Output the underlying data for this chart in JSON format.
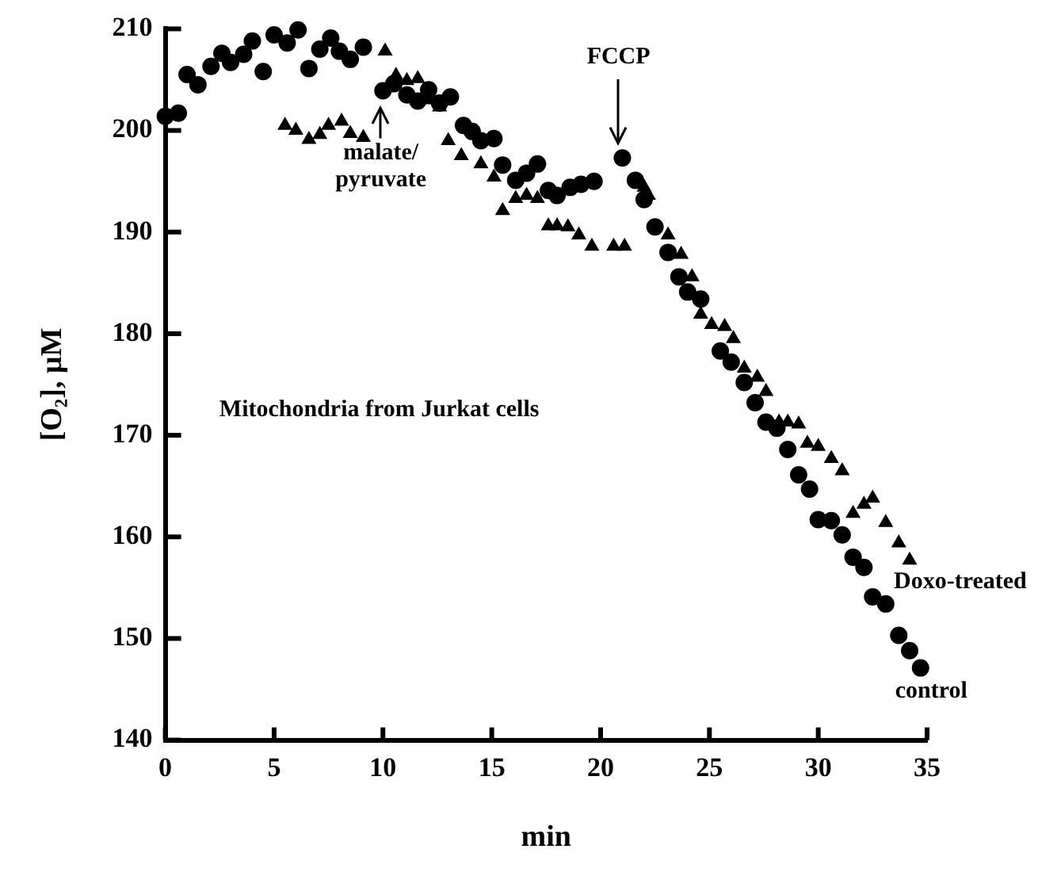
{
  "chart_data": {
    "type": "scatter",
    "xlabel": "min",
    "ylabel": "[O₂], μM",
    "xlim": [
      0,
      35
    ],
    "ylim": [
      140,
      210
    ],
    "xticks": [
      0,
      5,
      10,
      15,
      20,
      25,
      30,
      35
    ],
    "yticks": [
      140,
      150,
      160,
      170,
      180,
      190,
      200,
      210
    ],
    "grid": false,
    "legend": false,
    "annotations": [
      "Mitochondria from Jurkat cells",
      "malate/\npyruvate",
      "FCCP"
    ],
    "series": [
      {
        "name": "control",
        "color": "#000000",
        "marker": "circle",
        "x": [
          0,
          0.6,
          1.0,
          1.5,
          2.1,
          2.6,
          3.0,
          3.6,
          4.0,
          4.5,
          5.0,
          5.6,
          6.1,
          6.6,
          7.1,
          7.6,
          8.0,
          8.5,
          9.1,
          10.0,
          10.5,
          11.1,
          11.6,
          12.1,
          12.6,
          13.1,
          13.7,
          14.1,
          14.5,
          15.1,
          15.5,
          16.1,
          16.6,
          17.1,
          17.6,
          18.0,
          18.6,
          19.1,
          19.7,
          21.0,
          21.6,
          22.0,
          22.5,
          23.1,
          23.6,
          24.0,
          24.6,
          25.5,
          26.0,
          26.6,
          27.1,
          27.6,
          28.1,
          28.6,
          29.1,
          29.6,
          30.0,
          30.6,
          31.1,
          31.6,
          32.1,
          32.5,
          33.1,
          33.7,
          34.2,
          34.7
        ],
        "values": [
          201.4,
          201.7,
          205.5,
          204.5,
          206.3,
          207.6,
          206.7,
          207.5,
          208.8,
          205.8,
          209.4,
          208.6,
          209.9,
          206.1,
          208.0,
          209.1,
          207.8,
          207.0,
          208.2,
          203.9,
          204.6,
          203.5,
          202.9,
          204.0,
          202.7,
          203.3,
          200.5,
          199.9,
          199.0,
          199.2,
          196.6,
          195.1,
          195.8,
          196.7,
          194.1,
          193.6,
          194.4,
          194.7,
          195.0,
          197.3,
          195.1,
          193.2,
          190.5,
          188.0,
          185.6,
          184.1,
          183.4,
          178.3,
          177.2,
          175.2,
          173.2,
          171.3,
          170.7,
          168.6,
          166.1,
          164.7,
          161.7,
          161.6,
          160.2,
          158.0,
          157.0,
          154.1,
          153.4,
          150.3,
          148.8,
          147.1
        ]
      },
      {
        "name": "Doxo-treated",
        "color": "#000000",
        "marker": "triangle",
        "x": [
          5.5,
          6.0,
          6.6,
          7.1,
          7.5,
          8.1,
          8.5,
          9.1,
          10.1,
          10.6,
          11.1,
          11.6,
          12.1,
          12.6,
          13.0,
          13.6,
          14.5,
          15.1,
          15.5,
          16.1,
          16.6,
          17.1,
          17.6,
          18.0,
          18.5,
          19.0,
          19.6,
          20.6,
          21.1,
          22.0,
          22.2,
          23.1,
          23.7,
          24.2,
          24.6,
          25.1,
          25.7,
          26.1,
          26.6,
          27.2,
          27.6,
          28.2,
          28.6,
          29.1,
          29.5,
          30.0,
          30.6,
          31.1,
          31.6,
          32.1,
          32.5,
          33.1,
          33.7,
          34.2
        ],
        "values": [
          200.5,
          200.0,
          199.1,
          199.6,
          200.5,
          200.9,
          199.7,
          199.3,
          207.8,
          205.4,
          204.9,
          205.1,
          203.0,
          202.3,
          199.0,
          197.5,
          196.7,
          195.4,
          192.1,
          193.3,
          193.6,
          193.3,
          190.6,
          190.6,
          190.5,
          189.7,
          188.6,
          188.6,
          188.6,
          194.4,
          193.6,
          189.7,
          187.8,
          185.6,
          181.9,
          180.9,
          180.7,
          179.5,
          176.6,
          175.7,
          174.3,
          171.3,
          171.3,
          171.1,
          169.2,
          168.9,
          167.7,
          166.5,
          162.3,
          163.2,
          163.8,
          161.4,
          159.4,
          157.7
        ]
      }
    ]
  }
}
